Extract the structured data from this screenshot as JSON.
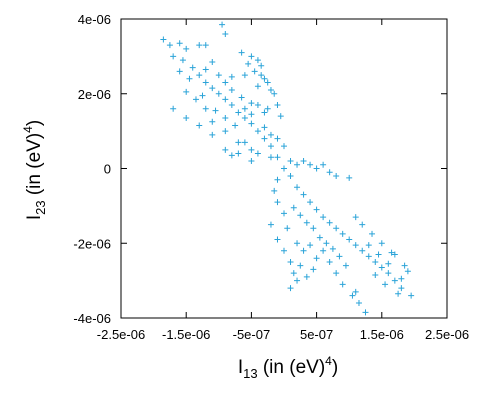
{
  "chart_data": {
    "type": "scatter",
    "marker": "+",
    "color": "#2aa3d8",
    "xlim": [
      -2.5e-06,
      2.5e-06
    ],
    "ylim": [
      -4e-06,
      4e-06
    ],
    "xticks": [
      {
        "value": -2.5e-06,
        "label": "-2.5e-06"
      },
      {
        "value": -1.5e-06,
        "label": "-1.5e-06"
      },
      {
        "value": -5e-07,
        "label": "-5e-07"
      },
      {
        "value": 5e-07,
        "label": "5e-07"
      },
      {
        "value": 1.5e-06,
        "label": "1.5e-06"
      },
      {
        "value": 2.5e-06,
        "label": "2.5e-06"
      }
    ],
    "yticks": [
      {
        "value": -4e-06,
        "label": "-4e-06"
      },
      {
        "value": -2e-06,
        "label": "-2e-06"
      },
      {
        "value": 0,
        "label": "0"
      },
      {
        "value": 2e-06,
        "label": "2e-06"
      },
      {
        "value": 4e-06,
        "label": "4e-06"
      }
    ],
    "xlabel": {
      "main": "I",
      "sub": "13",
      "rest": " (in (eV)",
      "sup": "4",
      "close": ")"
    },
    "ylabel": {
      "main": "I",
      "sub": "23",
      "rest": " (in (eV)",
      "sup": "4",
      "close": ")"
    },
    "grid": false,
    "legend": "none",
    "series": [
      {
        "points": [
          [
            -1.85e-06,
            3.45e-06
          ],
          [
            -1.75e-06,
            3.3e-06
          ],
          [
            -1.6e-06,
            3.35e-06
          ],
          [
            -1.5e-06,
            3.2e-06
          ],
          [
            -1.3e-06,
            3.3e-06
          ],
          [
            -1.2e-06,
            3.3e-06
          ],
          [
            -9.5e-07,
            3.85e-06
          ],
          [
            -9e-07,
            3.6e-06
          ],
          [
            -1.7e-06,
            3e-06
          ],
          [
            -1.55e-06,
            2.9e-06
          ],
          [
            -1.4e-06,
            2.7e-06
          ],
          [
            -1.45e-06,
            2.4e-06
          ],
          [
            -1.3e-06,
            2.5e-06
          ],
          [
            -1.2e-06,
            2.3e-06
          ],
          [
            -1.1e-06,
            2.15e-06
          ],
          [
            -1e-06,
            2e-06
          ],
          [
            -9e-07,
            1.85e-06
          ],
          [
            -8e-07,
            1.7e-06
          ],
          [
            -7e-07,
            1.5e-06
          ],
          [
            -6e-07,
            1.35e-06
          ],
          [
            -5e-07,
            1.2e-06
          ],
          [
            -4e-07,
            1e-06
          ],
          [
            -3e-07,
            8e-07
          ],
          [
            -2e-07,
            6e-07
          ],
          [
            -1e-07,
            3e-07
          ],
          [
            0,
            0
          ],
          [
            1e-07,
            -2e-07
          ],
          [
            2e-07,
            -5e-07
          ],
          [
            3e-07,
            -7e-07
          ],
          [
            4e-07,
            -9e-07
          ],
          [
            5e-07,
            -1.1e-06
          ],
          [
            6e-07,
            -1.3e-06
          ],
          [
            7e-07,
            -1.45e-06
          ],
          [
            8e-07,
            -1.6e-06
          ],
          [
            9e-07,
            -1.75e-06
          ],
          [
            1e-06,
            -1.9e-06
          ],
          [
            1.1e-06,
            -2.05e-06
          ],
          [
            1.2e-06,
            -2.2e-06
          ],
          [
            1.3e-06,
            -2.35e-06
          ],
          [
            1.4e-06,
            -2.5e-06
          ],
          [
            1.5e-06,
            -2.65e-06
          ],
          [
            1.6e-06,
            -2.8e-06
          ],
          [
            1.7e-06,
            -3e-06
          ],
          [
            1.8e-06,
            -3.2e-06
          ],
          [
            1.75e-06,
            -3.35e-06
          ],
          [
            1.95e-06,
            -3.4e-06
          ],
          [
            1.85e-06,
            -2.6e-06
          ],
          [
            1.7e-06,
            -2.3e-06
          ],
          [
            -1.6e-06,
            2.6e-06
          ],
          [
            -1.5e-06,
            2.05e-06
          ],
          [
            -1.35e-06,
            1.85e-06
          ],
          [
            -1.2e-06,
            1.6e-06
          ],
          [
            -1.25e-06,
            1.95e-06
          ],
          [
            -1.05e-06,
            1.55e-06
          ],
          [
            -9e-07,
            1.35e-06
          ],
          [
            -7.5e-07,
            1.15e-06
          ],
          [
            -9e-07,
            2.3e-06
          ],
          [
            -8e-07,
            2.1e-06
          ],
          [
            -6.5e-07,
            1.9e-06
          ],
          [
            -5e-07,
            1.75e-06
          ],
          [
            -4e-07,
            2.2e-06
          ],
          [
            -3.5e-07,
            2.5e-06
          ],
          [
            -4.5e-07,
            2.6e-06
          ],
          [
            -2.5e-07,
            1.6e-06
          ],
          [
            -2e-07,
            2.1e-06
          ],
          [
            -1.5e-07,
            2e-06
          ],
          [
            -1e-07,
            1.7e-06
          ],
          [
            -5e-08,
            1.4e-06
          ],
          [
            -6e-07,
            7e-07
          ],
          [
            -5e-07,
            5e-07
          ],
          [
            -4e-07,
            4e-07
          ],
          [
            -7e-07,
            4e-07
          ],
          [
            -8e-07,
            3.5e-07
          ],
          [
            -9e-07,
            5e-07
          ],
          [
            -3e-07,
            1.1e-06
          ],
          [
            -2e-07,
            9e-07
          ],
          [
            -1e-07,
            8e-07
          ],
          [
            0,
            6e-07
          ],
          [
            -2e-07,
            3e-07
          ],
          [
            1e-07,
            2e-07
          ],
          [
            2e-07,
            1e-07
          ],
          [
            3e-07,
            2e-07
          ],
          [
            4e-07,
            1e-07
          ],
          [
            5e-07,
            0
          ],
          [
            6e-07,
            1e-07
          ],
          [
            7e-07,
            -1e-07
          ],
          [
            8e-07,
            -2e-07
          ],
          [
            1e-06,
            -2.5e-07
          ],
          [
            -1e-07,
            -3e-07
          ],
          [
            -1.5e-07,
            -6e-07
          ],
          [
            -1e-07,
            -9e-07
          ],
          [
            0,
            -1.2e-06
          ],
          [
            -2e-07,
            -1.5e-06
          ],
          [
            -1e-07,
            -1.9e-06
          ],
          [
            0,
            -2.2e-06
          ],
          [
            1e-07,
            -2.5e-06
          ],
          [
            1.5e-07,
            -2.8e-06
          ],
          [
            2e-07,
            -3e-06
          ],
          [
            1e-07,
            -3.2e-06
          ],
          [
            2.5e-07,
            -2.6e-06
          ],
          [
            3.5e-07,
            -2.9e-06
          ],
          [
            4.5e-07,
            -2.7e-06
          ],
          [
            5e-07,
            -2.4e-06
          ],
          [
            6e-07,
            -2.2e-06
          ],
          [
            7e-07,
            -2.5e-06
          ],
          [
            8e-07,
            -2.8e-06
          ],
          [
            9e-07,
            -3.1e-06
          ],
          [
            1.05e-06,
            -3.4e-06
          ],
          [
            1.15e-06,
            -3.6e-06
          ],
          [
            1.25e-06,
            -3.85e-06
          ],
          [
            1.1e-06,
            -3.3e-06
          ],
          [
            9.5e-07,
            -2.6e-06
          ],
          [
            1.2e-06,
            -1.5e-06
          ],
          [
            1.35e-06,
            -1.75e-06
          ],
          [
            1.5e-06,
            -2e-06
          ],
          [
            1.65e-06,
            -2.25e-06
          ],
          [
            1.3e-06,
            -2.05e-06
          ],
          [
            1.45e-06,
            -2.3e-06
          ],
          [
            1.6e-06,
            -2.55e-06
          ],
          [
            1.1e-06,
            -1.3e-06
          ],
          [
            -1.7e-06,
            1.6e-06
          ],
          [
            -1.5e-06,
            1.35e-06
          ],
          [
            -1.3e-06,
            1.15e-06
          ],
          [
            -1.1e-06,
            9e-07
          ],
          [
            -1.1e-06,
            1.25e-06
          ],
          [
            -9e-07,
            1e-06
          ],
          [
            -7e-07,
            7e-07
          ],
          [
            -5e-07,
            2e-07
          ],
          [
            1.5e-07,
            -1.05e-06
          ],
          [
            2.5e-07,
            -1.25e-06
          ],
          [
            3.5e-07,
            -1.45e-06
          ],
          [
            4.5e-07,
            -1.6e-06
          ],
          [
            5.5e-07,
            -1.85e-06
          ],
          [
            6.5e-07,
            -2e-06
          ],
          [
            7.5e-07,
            -2.15e-06
          ],
          [
            8.5e-07,
            -2.35e-06
          ],
          [
            -6e-07,
            2.5e-06
          ],
          [
            -5.5e-07,
            2.8e-06
          ],
          [
            -5e-07,
            3e-06
          ],
          [
            -4e-07,
            2.9e-06
          ],
          [
            -3e-07,
            2.4e-06
          ],
          [
            -6.5e-07,
            3.1e-06
          ],
          [
            -3.5e-07,
            2.75e-06
          ],
          [
            -2.5e-07,
            2.3e-06
          ],
          [
            -1e-06,
            2.5e-06
          ],
          [
            -1.1e-06,
            2.85e-06
          ],
          [
            -1.2e-06,
            2.65e-06
          ],
          [
            -8e-07,
            2.45e-06
          ],
          [
            2e-07,
            -2e-06
          ],
          [
            3e-07,
            -2.2e-06
          ],
          [
            4e-07,
            -2.05e-06
          ],
          [
            5e-08,
            -1.6e-06
          ],
          [
            -3e-07,
            1.5e-06
          ],
          [
            -4e-07,
            1.7e-06
          ],
          [
            -5e-07,
            1.45e-06
          ],
          [
            -6e-07,
            1.6e-06
          ],
          [
            1.8e-06,
            -2.95e-06
          ],
          [
            1.9e-06,
            -2.75e-06
          ],
          [
            1.55e-06,
            -3.1e-06
          ],
          [
            1.4e-06,
            -2.85e-06
          ]
        ]
      }
    ]
  }
}
